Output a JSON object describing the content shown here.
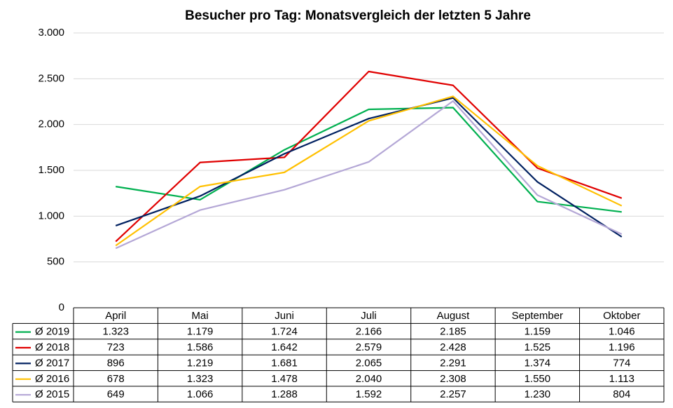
{
  "chart_data": {
    "type": "line",
    "title": "Besucher pro Tag: Monatsvergleich der letzten 5 Jahre",
    "categories": [
      "April",
      "Mai",
      "Juni",
      "Juli",
      "August",
      "September",
      "Oktober"
    ],
    "ylim": [
      0,
      3000
    ],
    "yticks": [
      0,
      500,
      {
        "value": 1000,
        "label": "1.000"
      },
      {
        "value": 1500,
        "label": "1.500"
      },
      {
        "value": 2000,
        "label": "2.000"
      },
      {
        "value": 2500,
        "label": "2.500"
      },
      {
        "value": 3000,
        "label": "3.000"
      }
    ],
    "grid": true,
    "series": [
      {
        "name": "Ø 2019",
        "color": "#00b050",
        "values": [
          1323,
          1179,
          1724,
          2166,
          2185,
          1159,
          1046
        ],
        "value_labels": [
          "1.323",
          "1.179",
          "1.724",
          "2.166",
          "2.185",
          "1.159",
          "1.046"
        ]
      },
      {
        "name": "Ø 2018",
        "color": "#e00000",
        "values": [
          723,
          1586,
          1642,
          2579,
          2428,
          1525,
          1196
        ],
        "value_labels": [
          "723",
          "1.586",
          "1.642",
          "2.579",
          "2.428",
          "1.525",
          "1.196"
        ]
      },
      {
        "name": "Ø 2017",
        "color": "#002060",
        "values": [
          896,
          1219,
          1681,
          2065,
          2291,
          1374,
          774
        ],
        "value_labels": [
          "896",
          "1.219",
          "1.681",
          "2.065",
          "2.291",
          "1.374",
          "774"
        ]
      },
      {
        "name": "Ø 2016",
        "color": "#ffc000",
        "values": [
          678,
          1323,
          1478,
          2040,
          2308,
          1550,
          1113
        ],
        "value_labels": [
          "678",
          "1.323",
          "1.478",
          "2.040",
          "2.308",
          "1.550",
          "1.113"
        ]
      },
      {
        "name": "Ø 2015",
        "color": "#b4a7d6",
        "values": [
          649,
          1066,
          1288,
          1592,
          2257,
          1230,
          804
        ],
        "value_labels": [
          "649",
          "1.066",
          "1.288",
          "1.592",
          "2.257",
          "1.230",
          "804"
        ]
      }
    ]
  }
}
